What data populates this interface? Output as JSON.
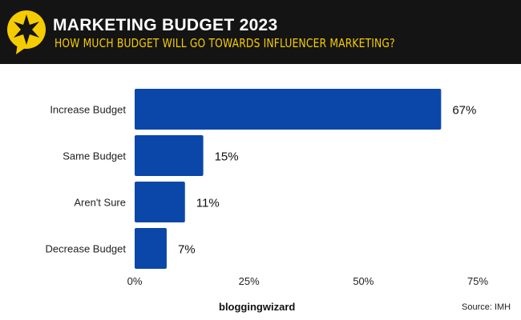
{
  "header": {
    "title": "MARKETING BUDGET 2023",
    "subtitle": "HOW MUCH BUDGET WILL GO TOWARDS INFLUENCER MARKETING?",
    "logo_icon": "star-speech-bubble-icon",
    "accent": "#f5cc00",
    "background": "#141414"
  },
  "chart_data": {
    "type": "bar",
    "orientation": "horizontal",
    "title": "MARKETING BUDGET 2023",
    "subtitle": "HOW MUCH BUDGET WILL GO TOWARDS INFLUENCER MARKETING?",
    "categories": [
      "Increase Budget",
      "Same Budget",
      "Aren't Sure",
      "Decrease Budget"
    ],
    "values": [
      67,
      15,
      11,
      7
    ],
    "data_labels": [
      "67%",
      "15%",
      "11%",
      "7%"
    ],
    "xlim": [
      0,
      75
    ],
    "xticks": [
      "0%",
      "25%",
      "50%",
      "75%"
    ],
    "grid": false,
    "bar_color": "#0a47a8"
  },
  "footer": {
    "brand": "bloggingwizard",
    "source": "Source: IMH"
  }
}
